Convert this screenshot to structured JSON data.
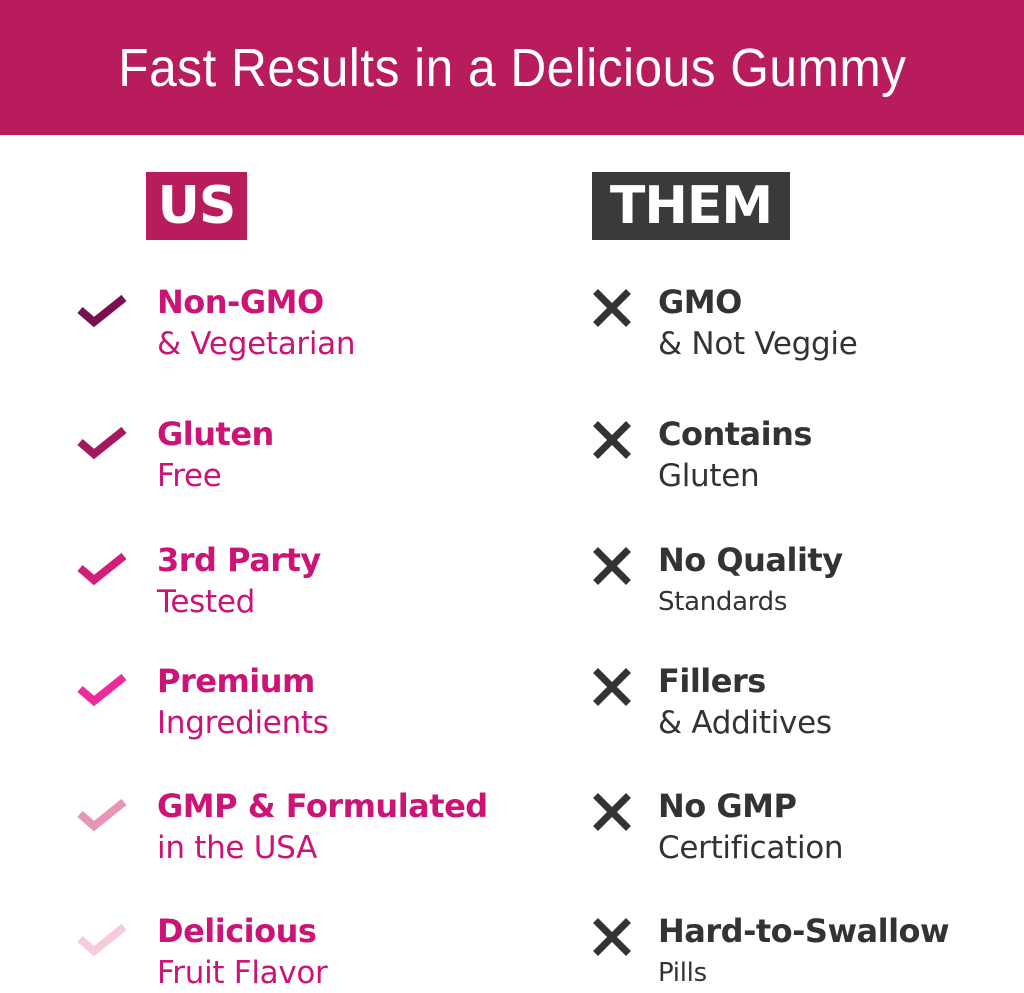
{
  "title": "Fast Results in a Delicious Gummy",
  "colors": {
    "brand": "#b81c5c",
    "them_badge": "#3a3a3a",
    "us_text": "#cc1477",
    "them_text": "#333333"
  },
  "us": {
    "label": "US",
    "items": [
      {
        "bold": "Non-GMO",
        "sub": "& Vegetarian",
        "icon": "check-icon",
        "icon_color": "#7a1050"
      },
      {
        "bold": "Gluten",
        "sub": "Free",
        "icon": "check-icon",
        "icon_color": "#a3185f"
      },
      {
        "bold": "3rd Party",
        "sub": "Tested",
        "icon": "check-icon",
        "icon_color": "#d0207a"
      },
      {
        "bold": "Premium",
        "sub": "Ingredients",
        "icon": "check-icon",
        "icon_color": "#ec2c9a"
      },
      {
        "bold": "GMP & Formulated",
        "sub": "in the USA",
        "icon": "check-icon",
        "icon_color": "#e893ba"
      },
      {
        "bold": "Delicious",
        "sub": "Fruit Flavor",
        "icon": "check-icon",
        "icon_color": "#f6cbe0"
      }
    ]
  },
  "them": {
    "label": "THEM",
    "items": [
      {
        "bold": "GMO",
        "sub": "& Not Veggie",
        "icon": "x-icon"
      },
      {
        "bold": "Contains",
        "sub": "Gluten",
        "icon": "x-icon"
      },
      {
        "bold": "No Quality",
        "sub": "Standards",
        "icon": "x-icon"
      },
      {
        "bold": "Fillers",
        "sub": "& Additives",
        "icon": "x-icon"
      },
      {
        "bold": "No GMP",
        "sub": "Certification",
        "icon": "x-icon"
      },
      {
        "bold": "Hard-to-Swallow",
        "sub": "Pills",
        "icon": "x-icon"
      }
    ]
  }
}
